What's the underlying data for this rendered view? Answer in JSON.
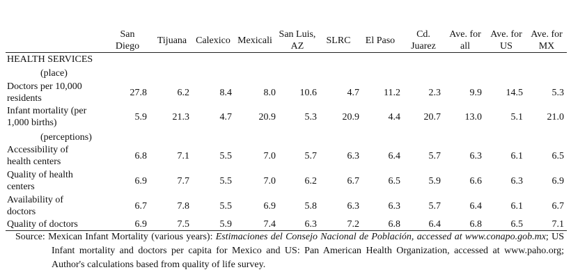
{
  "table": {
    "columns": [
      [
        "San",
        "Diego"
      ],
      [
        "Tijuana"
      ],
      [
        "Calexico"
      ],
      [
        "Mexicali"
      ],
      [
        "San Luis,",
        "AZ"
      ],
      [
        "SLRC"
      ],
      [
        "El Paso"
      ],
      [
        "Cd.",
        "Juarez"
      ],
      [
        "Ave. for",
        "all"
      ],
      [
        "Ave. for",
        "US"
      ],
      [
        "Ave. for",
        "MX"
      ]
    ],
    "rows": [
      {
        "heading": "HEALTH SERVICES"
      },
      {
        "subheading": "(place)"
      },
      {
        "label": [
          "Doctors per 10,000",
          "residents"
        ],
        "values": [
          "27.8",
          "6.2",
          "8.4",
          "8.0",
          "10.6",
          "4.7",
          "11.2",
          "2.3",
          "9.9",
          "14.5",
          "5.3"
        ]
      },
      {
        "label": [
          "Infant mortality (per",
          "1,000 births)"
        ],
        "values": [
          "5.9",
          "21.3",
          "4.7",
          "20.9",
          "5.3",
          "20.9",
          "4.4",
          "20.7",
          "13.0",
          "5.1",
          "21.0"
        ]
      },
      {
        "subheading": "(perceptions)"
      },
      {
        "label": [
          "Accessibility of",
          "health centers"
        ],
        "values": [
          "6.8",
          "7.1",
          "5.5",
          "7.0",
          "5.7",
          "6.3",
          "6.4",
          "5.7",
          "6.3",
          "6.1",
          "6.5"
        ]
      },
      {
        "label": [
          "Quality of health",
          "centers"
        ],
        "values": [
          "6.9",
          "7.7",
          "5.5",
          "7.0",
          "6.2",
          "6.7",
          "6.5",
          "5.9",
          "6.6",
          "6.3",
          "6.9"
        ]
      },
      {
        "label": [
          "Availability of",
          "doctors"
        ],
        "values": [
          "6.7",
          "7.8",
          "5.5",
          "6.9",
          "5.8",
          "6.3",
          "6.3",
          "5.7",
          "6.4",
          "6.1",
          "6.7"
        ]
      },
      {
        "label": [
          "Quality of doctors"
        ],
        "values": [
          "6.9",
          "7.5",
          "5.9",
          "7.4",
          "6.3",
          "7.2",
          "6.8",
          "6.4",
          "6.8",
          "6.5",
          "7.1"
        ]
      }
    ]
  },
  "source": {
    "prefix": "Source:",
    "text1": "Mexican Infant Mortality (various years): ",
    "italic": "Estimaciones del Consejo Nacional de Población, accessed at www.conapo.gob.mx",
    "text2": "; US Infant mortality and doctors per capita for Mexico and US: Pan American Health Organization, accessed at www.paho.org; Author's calculations based from quality of life survey."
  }
}
